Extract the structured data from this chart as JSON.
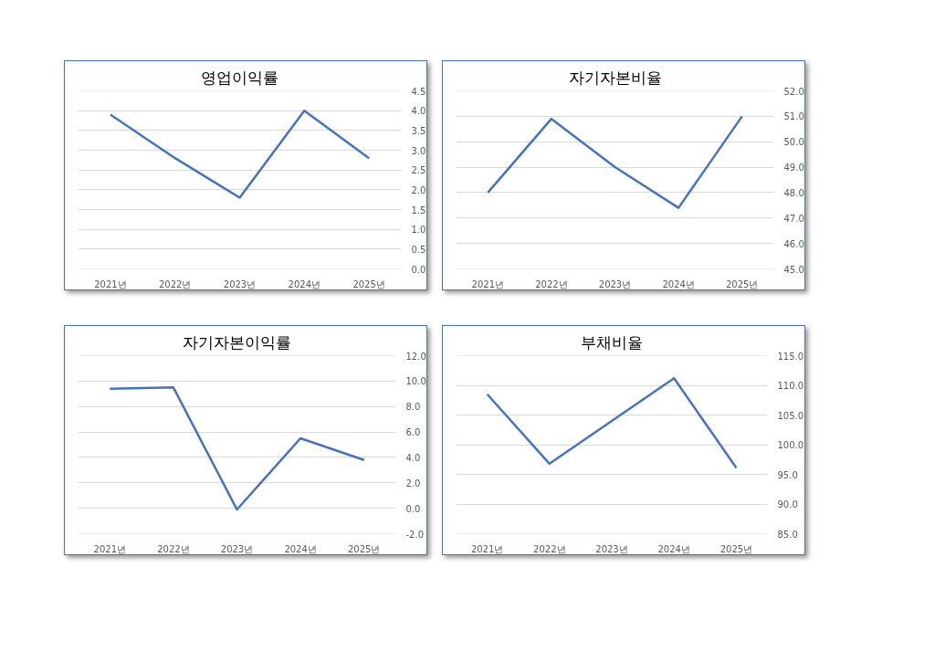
{
  "chart_data": [
    {
      "type": "line",
      "title": "영업이익률",
      "categories": [
        "2021년",
        "2022년",
        "2023년",
        "2024년",
        "2025년"
      ],
      "series": [
        {
          "color": "#4472c4",
          "values": [
            3.9,
            2.8,
            1.8,
            4.0,
            2.8
          ]
        }
      ],
      "ylim": [
        0,
        4.5
      ],
      "yticks": [
        {
          "value": 0,
          "label": "0.0"
        },
        {
          "value": 0.5,
          "label": "0.5"
        },
        {
          "value": 1,
          "label": "1.0"
        },
        {
          "value": 1.5,
          "label": "1.5"
        },
        {
          "value": 2,
          "label": "2.0"
        },
        {
          "value": 2.5,
          "label": "2.5"
        },
        {
          "value": 3,
          "label": "3.0"
        },
        {
          "value": 3.5,
          "label": "3.5"
        },
        {
          "value": 4,
          "label": "4.0"
        },
        {
          "value": 4.5,
          "label": "4.5"
        }
      ],
      "grid": "y",
      "marker": "none",
      "line_style": "solid"
    },
    {
      "type": "line",
      "title": "자기자본비율",
      "categories": [
        "2021년",
        "2022년",
        "2023년",
        "2024년",
        "2025년"
      ],
      "series": [
        {
          "color": "#4472c4",
          "values": [
            48.0,
            50.9,
            49.0,
            47.4,
            51.0
          ]
        }
      ],
      "ylim": [
        45,
        52
      ],
      "yticks": [
        {
          "value": 45,
          "label": "45.0"
        },
        {
          "value": 46,
          "label": "46.0"
        },
        {
          "value": 47,
          "label": "47.0"
        },
        {
          "value": 48,
          "label": "48.0"
        },
        {
          "value": 49,
          "label": "49.0"
        },
        {
          "value": 50,
          "label": "50.0"
        },
        {
          "value": 51,
          "label": "51.0"
        },
        {
          "value": 52,
          "label": "52.0"
        }
      ],
      "grid": "y",
      "marker": "none",
      "line_style": "solid"
    },
    {
      "type": "line",
      "title": "자기자본이익률",
      "categories": [
        "2021년",
        "2022년",
        "2023년",
        "2024년",
        "2025년"
      ],
      "series": [
        {
          "color": "#4472c4",
          "values": [
            9.4,
            9.5,
            -0.1,
            5.5,
            3.8
          ]
        }
      ],
      "ylim": [
        -2,
        12
      ],
      "yticks": [
        {
          "value": -2,
          "label": "-2.0"
        },
        {
          "value": 0,
          "label": "0.0"
        },
        {
          "value": 2,
          "label": "2.0"
        },
        {
          "value": 4,
          "label": "4.0"
        },
        {
          "value": 6,
          "label": "6.0"
        },
        {
          "value": 8,
          "label": "8.0"
        },
        {
          "value": 10,
          "label": "10.0"
        },
        {
          "value": 12,
          "label": "12.0"
        }
      ],
      "grid": "y",
      "marker": "none",
      "line_style": "solid"
    },
    {
      "type": "line",
      "title": "부채비율",
      "categories": [
        "2021년",
        "2022년",
        "2023년",
        "2024년",
        "2025년"
      ],
      "series": [
        {
          "color": "#4472c4",
          "values": [
            108.5,
            96.8,
            104.0,
            111.2,
            96.1
          ]
        }
      ],
      "ylim": [
        85,
        115
      ],
      "yticks": [
        {
          "value": 85,
          "label": "85.0"
        },
        {
          "value": 90,
          "label": "90.0"
        },
        {
          "value": 95,
          "label": "95.0"
        },
        {
          "value": 100,
          "label": "100.0"
        },
        {
          "value": 105,
          "label": "105.0"
        },
        {
          "value": 110,
          "label": "110.0"
        },
        {
          "value": 115,
          "label": "115.0"
        }
      ],
      "grid": "y",
      "marker": "none",
      "line_style": "solid"
    }
  ]
}
